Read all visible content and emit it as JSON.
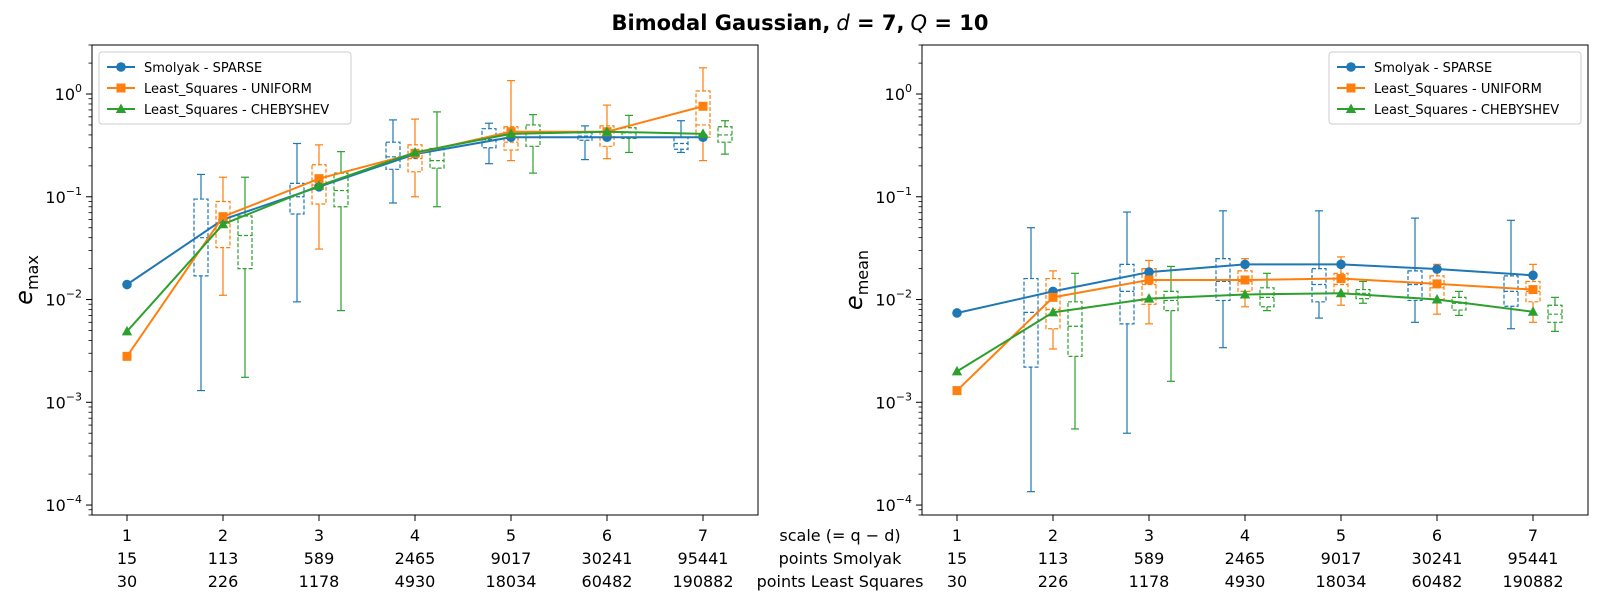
{
  "figure": {
    "title_main": "Bimodal Gaussian,",
    "title_d_var": "d",
    "title_d_eq": " = 7,",
    "title_q_var": "Q",
    "title_q_eq": " = 10"
  },
  "x_rows": {
    "row_labels": [
      "scale (= q − d)",
      "points Smolyak",
      "points Least Squares"
    ],
    "scale": [
      "1",
      "2",
      "3",
      "4",
      "5",
      "6",
      "7"
    ],
    "points_smolyak": [
      "15",
      "113",
      "589",
      "2465",
      "9017",
      "30241",
      "95441"
    ],
    "points_least_squares": [
      "30",
      "226",
      "1178",
      "4930",
      "18034",
      "60482",
      "190882"
    ]
  },
  "colors": {
    "smolyak": "#1f77b4",
    "uniform": "#ff7f0e",
    "chebyshev": "#2ca02c"
  },
  "chart_data": [
    {
      "type": "line",
      "ylabel_base": "e",
      "ylabel_sub": "max",
      "yscale": "log",
      "ylim": [
        8e-05,
        3
      ],
      "yticks": [
        {
          "base": "10",
          "exp": "0",
          "value": 1
        },
        {
          "base": "10",
          "exp": "−1",
          "value": 0.1
        },
        {
          "base": "10",
          "exp": "−2",
          "value": 0.01
        },
        {
          "base": "10",
          "exp": "−3",
          "value": 0.001
        },
        {
          "base": "10",
          "exp": "−4",
          "value": 0.0001
        }
      ],
      "x": [
        1,
        2,
        3,
        4,
        5,
        6,
        7
      ],
      "legend_position": "top-left",
      "series": [
        {
          "name": "Smolyak - SPARSE",
          "marker": "circle",
          "values": [
            0.014,
            0.06,
            0.125,
            0.26,
            0.38,
            0.38,
            0.38
          ],
          "boxes": [
            null,
            {
              "whislo": 0.0013,
              "q1": 0.017,
              "med": 0.04,
              "q3": 0.095,
              "whishi": 0.165
            },
            {
              "whislo": 0.0095,
              "q1": 0.068,
              "med": 0.1,
              "q3": 0.135,
              "whishi": 0.33
            },
            {
              "whislo": 0.087,
              "q1": 0.185,
              "med": 0.245,
              "q3": 0.34,
              "whishi": 0.56
            },
            {
              "whislo": 0.21,
              "q1": 0.3,
              "med": 0.36,
              "q3": 0.46,
              "whishi": 0.52
            },
            {
              "whislo": 0.23,
              "q1": 0.355,
              "med": 0.39,
              "q3": 0.42,
              "whishi": 0.49
            },
            {
              "whislo": 0.27,
              "q1": 0.29,
              "med": 0.33,
              "q3": 0.38,
              "whishi": 0.55
            }
          ]
        },
        {
          "name": "Least_Squares - UNIFORM",
          "marker": "square",
          "values": [
            0.0028,
            0.064,
            0.15,
            0.265,
            0.43,
            0.43,
            0.76
          ],
          "boxes": [
            null,
            {
              "whislo": 0.011,
              "q1": 0.032,
              "med": 0.055,
              "q3": 0.09,
              "whishi": 0.155
            },
            {
              "whislo": 0.031,
              "q1": 0.085,
              "med": 0.13,
              "q3": 0.205,
              "whishi": 0.32
            },
            {
              "whislo": 0.1,
              "q1": 0.175,
              "med": 0.235,
              "q3": 0.32,
              "whishi": 0.57
            },
            {
              "whislo": 0.225,
              "q1": 0.285,
              "med": 0.34,
              "q3": 0.48,
              "whishi": 1.35
            },
            {
              "whislo": 0.235,
              "q1": 0.31,
              "med": 0.38,
              "q3": 0.49,
              "whishi": 0.78
            },
            {
              "whislo": 0.225,
              "q1": 0.38,
              "med": 0.5,
              "q3": 1.07,
              "whishi": 1.8
            }
          ]
        },
        {
          "name": "Least_Squares - CHEBYSHEV",
          "marker": "triangle",
          "values": [
            0.0049,
            0.054,
            0.128,
            0.27,
            0.41,
            0.43,
            0.41
          ],
          "boxes": [
            null,
            {
              "whislo": 0.00175,
              "q1": 0.02,
              "med": 0.042,
              "q3": 0.065,
              "whishi": 0.155
            },
            {
              "whislo": 0.0078,
              "q1": 0.08,
              "med": 0.115,
              "q3": 0.17,
              "whishi": 0.275
            },
            {
              "whislo": 0.08,
              "q1": 0.19,
              "med": 0.225,
              "q3": 0.295,
              "whishi": 0.67
            },
            {
              "whislo": 0.17,
              "q1": 0.31,
              "med": 0.38,
              "q3": 0.5,
              "whishi": 0.63
            },
            {
              "whislo": 0.27,
              "q1": 0.37,
              "med": 0.42,
              "q3": 0.47,
              "whishi": 0.62
            },
            {
              "whislo": 0.26,
              "q1": 0.34,
              "med": 0.4,
              "q3": 0.48,
              "whishi": 0.55
            }
          ]
        }
      ]
    },
    {
      "type": "line",
      "ylabel_base": "e",
      "ylabel_sub": "mean",
      "yscale": "log",
      "ylim": [
        8e-05,
        3
      ],
      "yticks": [
        {
          "base": "10",
          "exp": "0",
          "value": 1
        },
        {
          "base": "10",
          "exp": "−1",
          "value": 0.1
        },
        {
          "base": "10",
          "exp": "−2",
          "value": 0.01
        },
        {
          "base": "10",
          "exp": "−3",
          "value": 0.001
        },
        {
          "base": "10",
          "exp": "−4",
          "value": 0.0001
        }
      ],
      "x": [
        1,
        2,
        3,
        4,
        5,
        6,
        7
      ],
      "legend_position": "top-right",
      "series": [
        {
          "name": "Smolyak - SPARSE",
          "marker": "circle",
          "values": [
            0.0074,
            0.012,
            0.0185,
            0.022,
            0.022,
            0.0198,
            0.0172
          ],
          "boxes": [
            null,
            {
              "whislo": 0.000135,
              "q1": 0.0022,
              "med": 0.0075,
              "q3": 0.016,
              "whishi": 0.05
            },
            {
              "whislo": 0.0005,
              "q1": 0.0058,
              "med": 0.012,
              "q3": 0.022,
              "whishi": 0.071
            },
            {
              "whislo": 0.0034,
              "q1": 0.0098,
              "med": 0.015,
              "q3": 0.025,
              "whishi": 0.073
            },
            {
              "whislo": 0.0066,
              "q1": 0.0095,
              "med": 0.014,
              "q3": 0.02,
              "whishi": 0.073
            },
            {
              "whislo": 0.006,
              "q1": 0.0098,
              "med": 0.014,
              "q3": 0.019,
              "whishi": 0.062
            },
            {
              "whislo": 0.0052,
              "q1": 0.0086,
              "med": 0.012,
              "q3": 0.017,
              "whishi": 0.059
            }
          ]
        },
        {
          "name": "Least_Squares - UNIFORM",
          "marker": "square",
          "values": [
            0.0013,
            0.0105,
            0.0155,
            0.0155,
            0.016,
            0.0142,
            0.0125
          ],
          "boxes": [
            null,
            {
              "whislo": 0.0033,
              "q1": 0.0052,
              "med": 0.008,
              "q3": 0.016,
              "whishi": 0.019
            },
            {
              "whislo": 0.0058,
              "q1": 0.009,
              "med": 0.014,
              "q3": 0.02,
              "whishi": 0.024
            },
            {
              "whislo": 0.0085,
              "q1": 0.012,
              "med": 0.015,
              "q3": 0.019,
              "whishi": 0.025
            },
            {
              "whislo": 0.0088,
              "q1": 0.0115,
              "med": 0.014,
              "q3": 0.018,
              "whishi": 0.026
            },
            {
              "whislo": 0.0072,
              "q1": 0.01,
              "med": 0.013,
              "q3": 0.017,
              "whishi": 0.022
            },
            {
              "whislo": 0.006,
              "q1": 0.0095,
              "med": 0.012,
              "q3": 0.015,
              "whishi": 0.022
            }
          ]
        },
        {
          "name": "Least_Squares - CHEBYSHEV",
          "marker": "triangle",
          "values": [
            0.002,
            0.0075,
            0.0102,
            0.0112,
            0.0115,
            0.01,
            0.0076
          ],
          "boxes": [
            null,
            {
              "whislo": 0.00055,
              "q1": 0.0028,
              "med": 0.0055,
              "q3": 0.0095,
              "whishi": 0.018
            },
            {
              "whislo": 0.0016,
              "q1": 0.0078,
              "med": 0.0098,
              "q3": 0.012,
              "whishi": 0.021
            },
            {
              "whislo": 0.0078,
              "q1": 0.0085,
              "med": 0.0105,
              "q3": 0.013,
              "whishi": 0.018
            },
            {
              "whislo": 0.0092,
              "q1": 0.0102,
              "med": 0.0115,
              "q3": 0.0125,
              "whishi": 0.015
            },
            {
              "whislo": 0.007,
              "q1": 0.0079,
              "med": 0.0092,
              "q3": 0.0105,
              "whishi": 0.012
            },
            {
              "whislo": 0.0049,
              "q1": 0.006,
              "med": 0.0072,
              "q3": 0.0088,
              "whishi": 0.0105
            }
          ]
        }
      ]
    }
  ]
}
